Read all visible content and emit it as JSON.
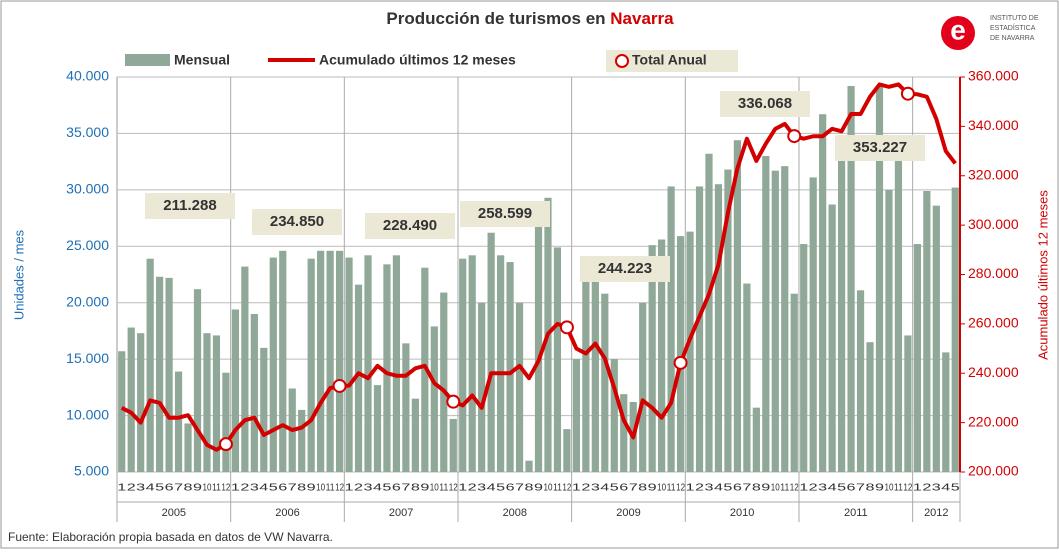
{
  "chart_data": {
    "type": "bar_line",
    "title": "Producción de turismos en",
    "title_highlight": "Navarra",
    "logo": {
      "letter": "e",
      "lines": [
        "INSTITUTO DE",
        "ESTADÍSTICA",
        "DE NAVARRA"
      ]
    },
    "ylabel": "Unidades / mes",
    "y2label": "Acumulado últimos 12 meses",
    "source": "Fuente: Elaboración propia basada en datos de VW Navarra.",
    "categories": [
      "1",
      "2",
      "3",
      "4",
      "5",
      "6",
      "7",
      "8",
      "9",
      "10",
      "11",
      "12",
      "1",
      "2",
      "3",
      "4",
      "5",
      "6",
      "7",
      "8",
      "9",
      "10",
      "11",
      "12",
      "1",
      "2",
      "3",
      "4",
      "5",
      "6",
      "7",
      "8",
      "9",
      "10",
      "11",
      "12",
      "1",
      "2",
      "3",
      "4",
      "5",
      "6",
      "7",
      "8",
      "9",
      "10",
      "11",
      "12",
      "1",
      "2",
      "3",
      "4",
      "5",
      "6",
      "7",
      "8",
      "9",
      "10",
      "11",
      "12",
      "1",
      "2",
      "3",
      "4",
      "5",
      "6",
      "7",
      "8",
      "9",
      "10",
      "11",
      "12",
      "1",
      "2",
      "3",
      "4",
      "5",
      "6",
      "7",
      "8",
      "9",
      "10",
      "11",
      "12",
      "1",
      "2",
      "3",
      "4",
      "5"
    ],
    "year_groups": [
      {
        "label": "2005",
        "months": 12
      },
      {
        "label": "2006",
        "months": 12
      },
      {
        "label": "2007",
        "months": 12
      },
      {
        "label": "2008",
        "months": 12
      },
      {
        "label": "2009",
        "months": 12
      },
      {
        "label": "2010",
        "months": 12
      },
      {
        "label": "2011",
        "months": 12
      },
      {
        "label": "2012",
        "months": 5
      }
    ],
    "series": [
      {
        "name": "Mensual",
        "color": "#8fa897",
        "values": [
          15700,
          17800,
          17300,
          23900,
          22300,
          22200,
          13900,
          9300,
          21200,
          17300,
          17100,
          13800,
          19400,
          23200,
          19000,
          16000,
          24000,
          24600,
          12400,
          10500,
          23900,
          24600,
          24600,
          24600,
          24000,
          21600,
          24200,
          12700,
          23400,
          24200,
          16400,
          11500,
          23100,
          17900,
          20900,
          9700,
          23900,
          24200,
          20000,
          26200,
          24200,
          23600,
          20000,
          6000,
          28400,
          29300,
          24900,
          8800,
          15000,
          22500,
          23500,
          20800,
          15000,
          11900,
          11200,
          20000,
          25100,
          25600,
          30300,
          25900,
          26300,
          30300,
          33200,
          30500,
          31800,
          34400,
          21700,
          10700,
          33000,
          31700,
          32100,
          20800,
          25200,
          31100,
          36700,
          28700,
          33600,
          39200,
          21100,
          16500,
          39200,
          30000,
          32600,
          17100,
          25200,
          29900,
          28600,
          15600,
          30200
        ]
      },
      {
        "name": "Acumulado últimos 12 meses",
        "color": "#d40000",
        "axis": "y2",
        "values": [
          226000,
          224000,
          220000,
          229000,
          228000,
          222000,
          222000,
          223000,
          217000,
          211000,
          209000,
          211288,
          217000,
          221000,
          222000,
          215000,
          217000,
          219000,
          217000,
          218000,
          221000,
          228000,
          234000,
          234850,
          235000,
          240000,
          238000,
          243000,
          240000,
          239000,
          239000,
          242000,
          243000,
          236000,
          233000,
          228490,
          227000,
          231000,
          226000,
          240000,
          240000,
          240000,
          243000,
          238000,
          245000,
          256000,
          260000,
          258599,
          250000,
          248000,
          252000,
          246000,
          234000,
          221000,
          214000,
          229000,
          226000,
          222000,
          228000,
          244223,
          254000,
          263000,
          272000,
          284000,
          305000,
          323000,
          335000,
          326000,
          333000,
          339000,
          341000,
          336068,
          335000,
          336000,
          336000,
          339000,
          338000,
          345000,
          345000,
          352000,
          357000,
          356000,
          357000,
          353227,
          353000,
          352000,
          343000,
          330000,
          325000
        ],
        "value_labels": [
          null,
          null,
          null,
          null,
          null,
          null,
          null,
          null,
          null,
          null,
          null,
          "211.288",
          null,
          null,
          null,
          null,
          null,
          null,
          null,
          null,
          null,
          null,
          null,
          "234.850",
          null,
          null,
          null,
          null,
          null,
          null,
          null,
          null,
          null,
          null,
          null,
          "228.490",
          null,
          null,
          null,
          null,
          null,
          null,
          null,
          null,
          null,
          null,
          null,
          "258.599",
          null,
          null,
          null,
          null,
          null,
          null,
          null,
          null,
          null,
          null,
          null,
          "244.223",
          null,
          null,
          null,
          null,
          null,
          null,
          null,
          null,
          null,
          null,
          null,
          "336.068",
          null,
          null,
          null,
          null,
          null,
          null,
          null,
          null,
          null,
          null,
          null,
          "353.227",
          null,
          null,
          null,
          null,
          null
        ]
      }
    ],
    "marker_legend": "Total Anual",
    "ylim": [
      5000,
      40000
    ],
    "yticks": [
      {
        "value": 5000,
        "label": "5.000"
      },
      {
        "value": 10000,
        "label": "10.000"
      },
      {
        "value": 15000,
        "label": "15.000"
      },
      {
        "value": 20000,
        "label": "20.000"
      },
      {
        "value": 25000,
        "label": "25.000"
      },
      {
        "value": 30000,
        "label": "30.000"
      },
      {
        "value": 35000,
        "label": "35.000"
      },
      {
        "value": 40000,
        "label": "40.000"
      }
    ],
    "y2lim": [
      200000,
      360000
    ],
    "y2ticks": [
      {
        "value": 200000,
        "label": "200.000"
      },
      {
        "value": 220000,
        "label": "220.000"
      },
      {
        "value": 240000,
        "label": "240.000"
      },
      {
        "value": 260000,
        "label": "260.000"
      },
      {
        "value": 280000,
        "label": "280.000"
      },
      {
        "value": 300000,
        "label": "300.000"
      },
      {
        "value": 320000,
        "label": "320.000"
      },
      {
        "value": 340000,
        "label": "340.000"
      },
      {
        "value": 360000,
        "label": "360.000"
      }
    ],
    "grid": true
  }
}
